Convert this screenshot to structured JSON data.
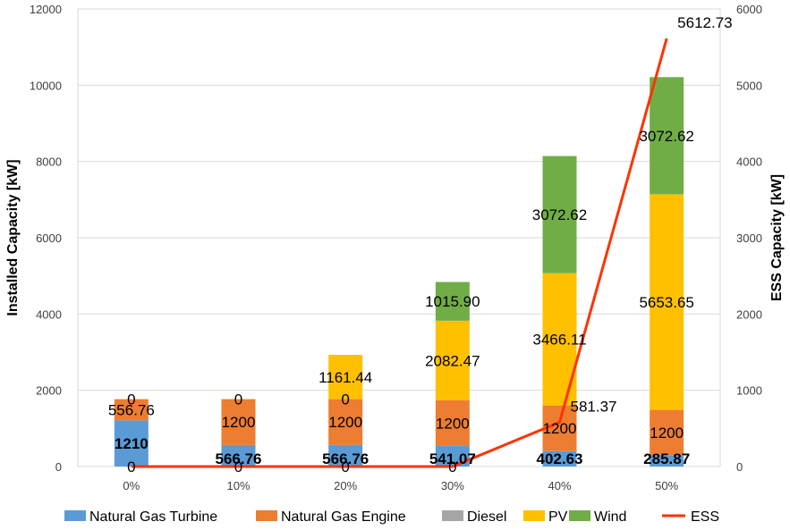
{
  "chart_data": {
    "type": "bar",
    "stacked": true,
    "categories": [
      "0%",
      "10%",
      "20%",
      "30%",
      "40%",
      "50%"
    ],
    "xlabel": "",
    "ylabel": "Installed Capacity [kW]",
    "y2label": "ESS Capacity [kW]",
    "ylim": [
      0,
      12000
    ],
    "y2lim": [
      0,
      6000
    ],
    "yticks": [
      "0",
      "2000",
      "4000",
      "6000",
      "8000",
      "10000",
      "12000"
    ],
    "y2ticks": [
      "0",
      "1000",
      "2000",
      "3000",
      "4000",
      "5000",
      "6000"
    ],
    "grid": true,
    "legend_position": "bottom",
    "colors": {
      "Natural Gas Turbine": "#5b9bd5",
      "Natural Gas Engine": "#ed7d31",
      "Diesel": "#a5a5a5",
      "PV": "#ffc000",
      "Wind": "#70ad47",
      "ESS": "#ff3300"
    },
    "series": [
      {
        "name": "Natural Gas Turbine",
        "values": [
          1210,
          566.76,
          566.76,
          541.07,
          402.63,
          285.87
        ],
        "labels": [
          "1210",
          "566.76",
          "566.76",
          "541.07",
          "402.63",
          "285.87"
        ]
      },
      {
        "name": "Natural Gas Engine",
        "values": [
          556.76,
          1200,
          1200,
          1200,
          1200,
          1200
        ],
        "labels": [
          "556.76",
          "1200",
          "1200",
          "1200",
          "1200",
          "1200"
        ]
      },
      {
        "name": "Diesel",
        "values": [
          0,
          0,
          0,
          0,
          0,
          0
        ],
        "labels": [
          "0",
          "0",
          "0",
          "",
          "",
          ""
        ]
      },
      {
        "name": "PV",
        "values": [
          0,
          0,
          1161.44,
          2082.47,
          3466.11,
          5653.65
        ],
        "labels": [
          "",
          "",
          "1161.44",
          "2082.47",
          "3466.11",
          "5653.65"
        ]
      },
      {
        "name": "Wind",
        "values": [
          0,
          0,
          0,
          1015.9,
          3072.62,
          3072.62
        ],
        "labels": [
          "",
          "",
          "",
          "1015.90",
          "3072.62",
          "3072.62"
        ]
      }
    ],
    "line_series": {
      "name": "ESS",
      "axis": "secondary",
      "values": [
        0,
        0,
        0,
        0,
        581.37,
        5612.73
      ],
      "labels": [
        "0",
        "0",
        "0",
        "0",
        "581.37",
        "5612.73"
      ]
    },
    "legend": [
      "Natural Gas Turbine",
      "Natural Gas Engine",
      "Diesel",
      "PV",
      "Wind",
      "ESS"
    ]
  }
}
